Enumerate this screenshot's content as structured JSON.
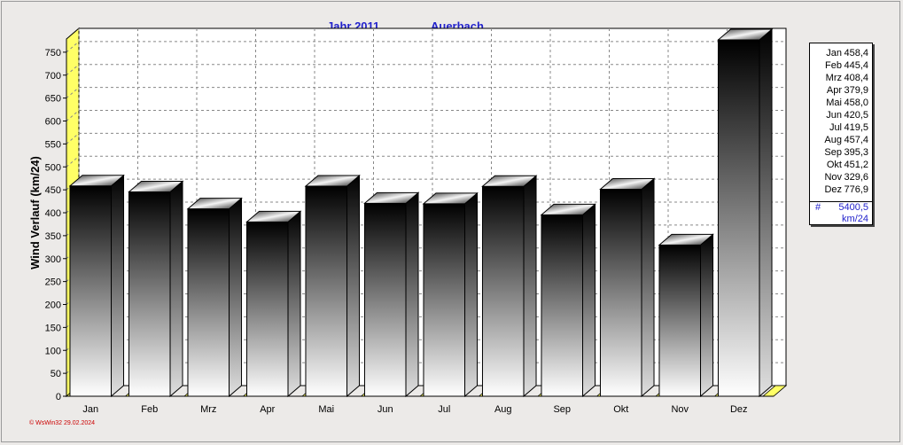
{
  "chart_data": {
    "type": "bar",
    "title_left": "Jahr  2011",
    "title_right": "Auerbach",
    "ylabel": "Wind Verlauf  (km/24)",
    "xlabel": "",
    "ylim": [
      0,
      800
    ],
    "yticks": [
      0,
      50,
      100,
      150,
      200,
      250,
      300,
      350,
      400,
      450,
      500,
      550,
      600,
      650,
      700,
      750
    ],
    "grid": true,
    "categories": [
      "Jan",
      "Feb",
      "Mrz",
      "Apr",
      "Mai",
      "Jun",
      "Jul",
      "Aug",
      "Sep",
      "Okt",
      "Nov",
      "Dez"
    ],
    "values": [
      458.4,
      445.4,
      408.4,
      379.9,
      458.0,
      420.5,
      419.5,
      457.4,
      395.3,
      451.2,
      329.6,
      776.9
    ],
    "legend": {
      "placement": "right",
      "entries": [
        {
          "name": "Jan",
          "value": "458,4"
        },
        {
          "name": "Feb",
          "value": "445,4"
        },
        {
          "name": "Mrz",
          "value": "408,4"
        },
        {
          "name": "Apr",
          "value": "379,9"
        },
        {
          "name": "Mai",
          "value": "458,0"
        },
        {
          "name": "Jun",
          "value": "420,5"
        },
        {
          "name": "Jul",
          "value": "419,5"
        },
        {
          "name": "Aug",
          "value": "457,4"
        },
        {
          "name": "Sep",
          "value": "395,3"
        },
        {
          "name": "Okt",
          "value": "451,2"
        },
        {
          "name": "Nov",
          "value": "329,6"
        },
        {
          "name": "Dez",
          "value": "776,9"
        }
      ],
      "total_symbol": "#",
      "total": "5400,5",
      "total_unit": "km/24"
    },
    "colors": {
      "bar_top": "#000000",
      "bar_bottom": "#ffffff",
      "floor": "#ffff66",
      "title": "#2222cc"
    }
  },
  "footer": "© WsWin32  29.02.2024"
}
